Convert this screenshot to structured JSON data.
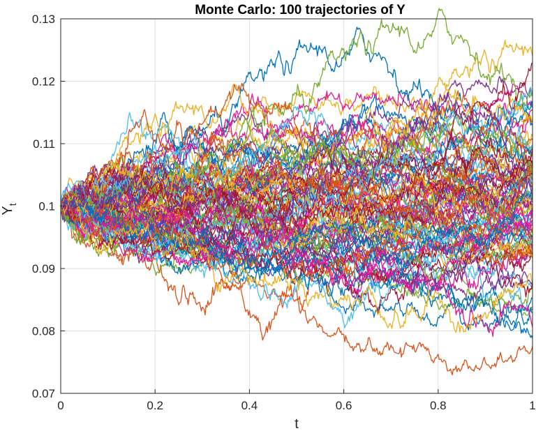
{
  "chart_data": {
    "type": "line",
    "title": "Monte Carlo: 100 trajectories of Y",
    "xlabel": "t",
    "ylabel_main": "Y",
    "ylabel_sub": "t",
    "xlim": [
      0,
      1
    ],
    "ylim": [
      0.07,
      0.13
    ],
    "xticks": [
      0,
      0.2,
      0.4,
      0.6,
      0.8,
      1
    ],
    "xtick_labels": [
      "0",
      "0.2",
      "0.4",
      "0.6",
      "0.8",
      "1"
    ],
    "yticks": [
      0.07,
      0.08,
      0.09,
      0.1,
      0.11,
      0.12,
      0.13
    ],
    "ytick_labels": [
      "0.07",
      "0.08",
      "0.09",
      "0.1",
      "0.11",
      "0.12",
      "0.13"
    ],
    "grid": true,
    "series_count": 100,
    "initial_value": 0.1,
    "colors": [
      "#0072BD",
      "#D95319",
      "#EDB120",
      "#7E2F8E",
      "#77AC30",
      "#4DBEEE",
      "#A2142F",
      "#E0189A"
    ],
    "series": [
      {
        "x": [
          0,
          0.1,
          0.2,
          0.3,
          0.4,
          0.5,
          0.6,
          0.7,
          0.8,
          0.9,
          1.0
        ],
        "values": [
          0.1,
          0.098,
          0.096,
          0.093,
          0.09,
          0.088,
          0.085,
          0.084,
          0.083,
          0.081,
          0.08
        ]
      },
      {
        "x": [
          0,
          0.1,
          0.2,
          0.3,
          0.4,
          0.5,
          0.6,
          0.7,
          0.8,
          0.9,
          1.0
        ],
        "values": [
          0.1,
          0.097,
          0.094,
          0.091,
          0.087,
          0.084,
          0.076,
          0.078,
          0.076,
          0.074,
          0.077
        ]
      },
      {
        "x": [
          0,
          0.1,
          0.2,
          0.3,
          0.4,
          0.5,
          0.6,
          0.7,
          0.8,
          0.9,
          1.0
        ],
        "values": [
          0.1,
          0.104,
          0.109,
          0.112,
          0.116,
          0.116,
          0.118,
          0.117,
          0.114,
          0.113,
          0.114
        ]
      },
      {
        "x": [
          0,
          0.1,
          0.2,
          0.3,
          0.4,
          0.5,
          0.6,
          0.7,
          0.8,
          0.9,
          1.0
        ],
        "values": [
          0.1,
          0.103,
          0.106,
          0.109,
          0.111,
          0.112,
          0.113,
          0.115,
          0.117,
          0.119,
          0.12
        ]
      },
      {
        "x": [
          0,
          0.1,
          0.2,
          0.3,
          0.4,
          0.5,
          0.6,
          0.7,
          0.8,
          0.9,
          1.0
        ],
        "values": [
          0.1,
          0.096,
          0.095,
          0.093,
          0.092,
          0.09,
          0.089,
          0.088,
          0.086,
          0.084,
          0.083
        ]
      },
      {
        "x": [
          0,
          0.1,
          0.2,
          0.3,
          0.4,
          0.5,
          0.6,
          0.7,
          0.8,
          0.9,
          1.0
        ],
        "values": [
          0.1,
          0.102,
          0.104,
          0.105,
          0.106,
          0.107,
          0.109,
          0.11,
          0.112,
          0.114,
          0.116
        ]
      },
      {
        "x": [
          0,
          0.1,
          0.2,
          0.3,
          0.4,
          0.5,
          0.6,
          0.7,
          0.8,
          0.9,
          1.0
        ],
        "values": [
          0.1,
          0.099,
          0.1,
          0.098,
          0.097,
          0.095,
          0.094,
          0.093,
          0.092,
          0.091,
          0.09
        ]
      },
      {
        "x": [
          0,
          0.1,
          0.2,
          0.3,
          0.4,
          0.5,
          0.6,
          0.7,
          0.8,
          0.9,
          1.0
        ],
        "values": [
          0.1,
          0.104,
          0.107,
          0.11,
          0.112,
          0.115,
          0.117,
          0.118,
          0.116,
          0.117,
          0.118
        ]
      }
    ]
  }
}
